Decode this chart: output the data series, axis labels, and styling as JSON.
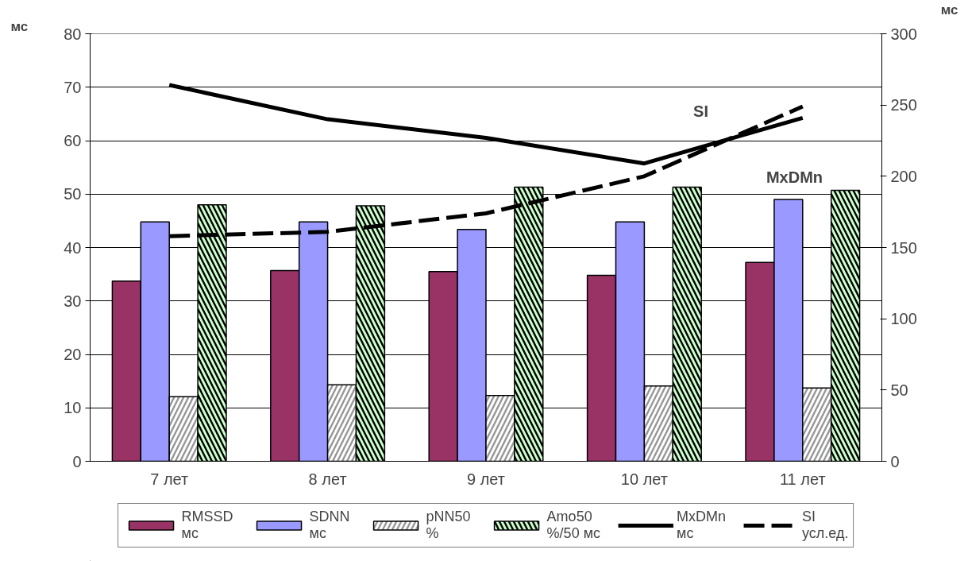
{
  "chart_data": {
    "type": "bar",
    "ylabel": "мс",
    "y2label": "мс",
    "categories": [
      "7 лет",
      "8 лет",
      "9 лет",
      "10 лет",
      "11 лет"
    ],
    "series": [
      {
        "name": "RMSSD\nмс",
        "color": "#993366",
        "values": [
          33.7,
          35.7,
          35.5,
          34.8,
          37.2
        ]
      },
      {
        "name": "SDNN\nмс",
        "color": "#9999ff",
        "values": [
          44.8,
          44.8,
          43.4,
          44.8,
          49.0
        ]
      },
      {
        "name": "pNN50\n%",
        "color": "#969696",
        "values": [
          12.1,
          14.3,
          12.3,
          14.1,
          13.7
        ]
      },
      {
        "name": "Amo50\n%/50 мс",
        "color": "#000000",
        "values": [
          48.0,
          47.8,
          51.3,
          51.3,
          50.7
        ]
      },
      {
        "name": "MxDMn\nмс",
        "type": "line",
        "axis": "y2",
        "color": "#000000",
        "line_style": "solid",
        "values": [
          264,
          240,
          227,
          209,
          241
        ]
      },
      {
        "name": "SI\nусл.ед.",
        "type": "line",
        "axis": "y2",
        "color": "#000000",
        "line_style": "dashed",
        "values": [
          158,
          161,
          174,
          200,
          249
        ]
      }
    ],
    "annotations": [
      "SI",
      "MxDMn"
    ],
    "ylim": [
      0,
      80
    ],
    "yticks": [
      0,
      10,
      20,
      30,
      40,
      50,
      60,
      70,
      80
    ],
    "y2lim": [
      0,
      300
    ],
    "y2ticks": [
      0,
      50,
      100,
      150,
      200,
      250,
      300
    ],
    "grid": "y",
    "legend": "bottom",
    "marker": "none"
  }
}
